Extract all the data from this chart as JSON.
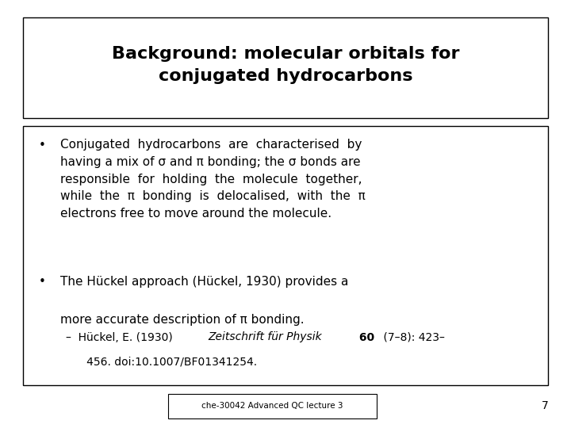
{
  "background_color": "#ffffff",
  "title_line1": "Background: molecular orbitals for",
  "title_line2": "conjugated hydrocarbons",
  "title_fontsize": 16,
  "body_fontsize": 11.0,
  "ref_fontsize": 10.0,
  "footer_text": "che-30042 Advanced QC lecture 3",
  "footer_number": "7",
  "bullet1_lines": [
    "Conjugated  hydrocarbons  are  characterised  by",
    "having a mix of σ and π bonding; the σ bonds are",
    "responsible  for  holding  the  molecule  together,",
    "while  the  π  bonding  is  delocalised,  with  the  π",
    "electrons free to move around the molecule."
  ],
  "bullet2_line1": "The Hückel approach (Hückel, 1930) provides a",
  "bullet2_line2": "more accurate description of π bonding.",
  "ref_prefix": "–  Hückel, E. (1930) ",
  "ref_italic": "Zeitschrift für Physik",
  "ref_bold": " 60",
  "ref_suffix": " (7–8): 423–",
  "ref_line2": "   456. doi:10.1007/BF01341254."
}
